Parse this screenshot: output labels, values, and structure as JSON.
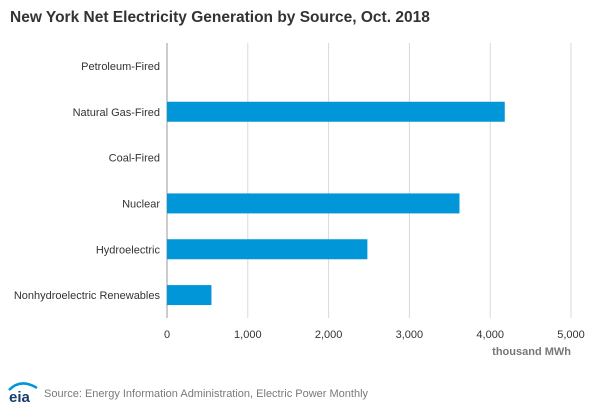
{
  "title": "New York Net Electricity Generation by Source, Oct. 2018",
  "source": "Source: Energy Information Administration, Electric Power Monthly",
  "logo_text": "eia",
  "colors": {
    "bar": "#0096d7",
    "grid": "#d9d9d9",
    "axis": "#999999",
    "text": "#333333"
  },
  "chart_data": {
    "type": "bar",
    "orientation": "horizontal",
    "categories": [
      "Petroleum-Fired",
      "Natural Gas-Fired",
      "Coal-Fired",
      "Nuclear",
      "Hydroelectric",
      "Nonhydroelectric Renewables"
    ],
    "values": [
      0,
      4180,
      0,
      3620,
      2480,
      550
    ],
    "xlabel": "thousand MWh",
    "xlim": [
      0,
      5000
    ],
    "xticks": [
      0,
      1000,
      2000,
      3000,
      4000,
      5000
    ],
    "xtick_labels": [
      "0",
      "1,000",
      "2,000",
      "3,000",
      "4,000",
      "5,000"
    ],
    "grid": true,
    "legend": "none"
  }
}
